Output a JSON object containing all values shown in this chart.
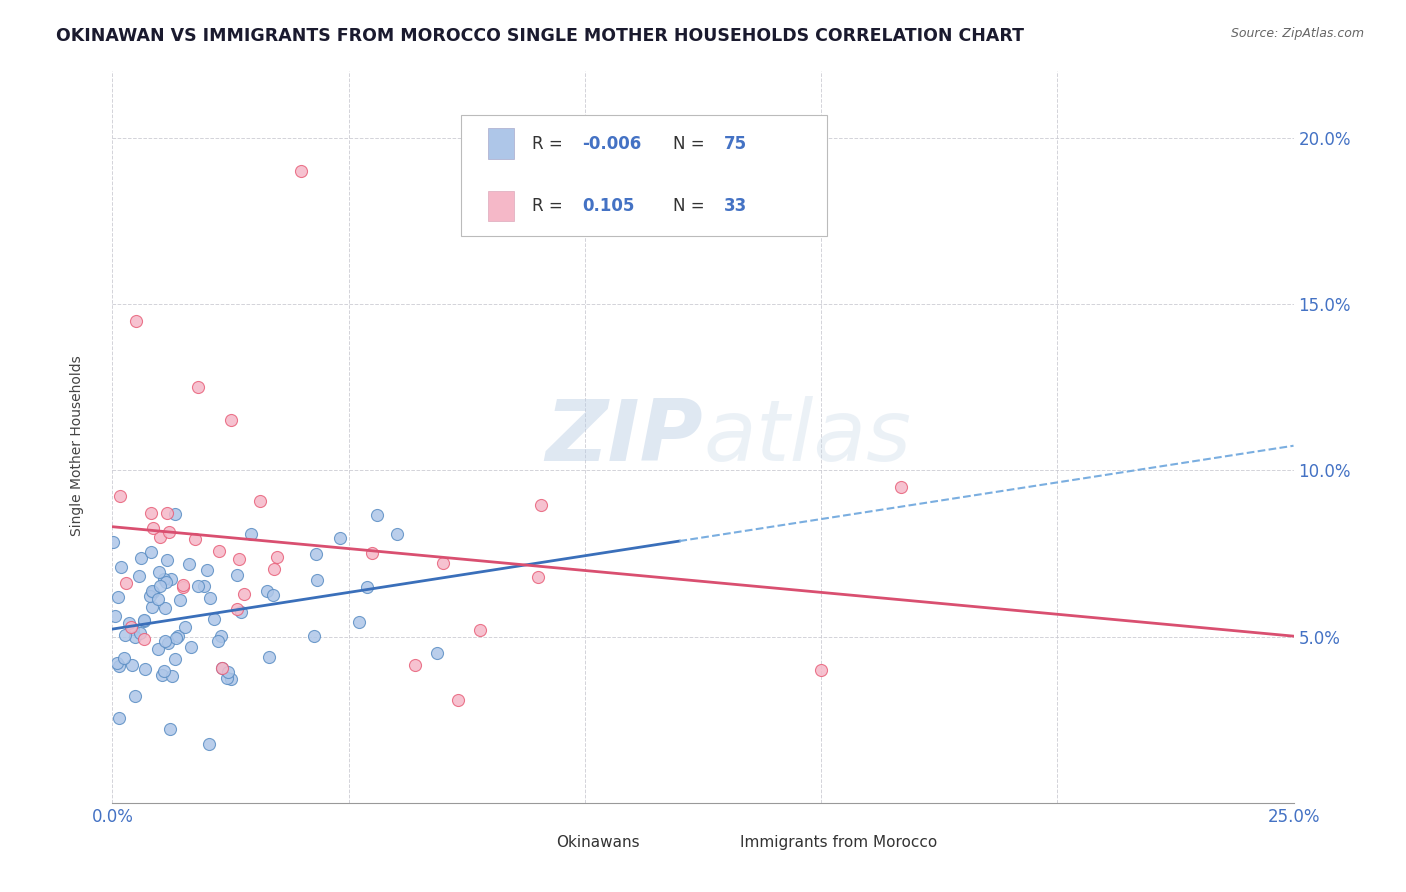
{
  "title": "OKINAWAN VS IMMIGRANTS FROM MOROCCO SINGLE MOTHER HOUSEHOLDS CORRELATION CHART",
  "source": "Source: ZipAtlas.com",
  "ylabel": "Single Mother Households",
  "xlim": [
    0.0,
    0.25
  ],
  "ylim": [
    0.0,
    0.22
  ],
  "ytick_vals": [
    0.05,
    0.1,
    0.15,
    0.2
  ],
  "ytick_labels": [
    "5.0%",
    "10.0%",
    "15.0%",
    "20.0%"
  ],
  "xtick_vals": [
    0.0,
    0.05,
    0.1,
    0.15,
    0.2,
    0.25
  ],
  "xtick_labels": [
    "0.0%",
    "",
    "",
    "",
    "",
    "25.0%"
  ],
  "legend_okinawan_R": "-0.006",
  "legend_okinawan_N": "75",
  "legend_morocco_R": "0.105",
  "legend_morocco_N": "33",
  "okinawan_color": "#aec6e8",
  "okinawan_edge_color": "#5b8ec4",
  "morocco_color": "#f5b8c8",
  "morocco_edge_color": "#e8607a",
  "ok_trend_solid_color": "#3a6fba",
  "ok_trend_dash_color": "#7aaee0",
  "mor_trend_color": "#d94f70",
  "background_color": "#ffffff",
  "grid_color": "#c8c8d0",
  "watermark_color": "#d0dff0",
  "title_color": "#1a1a2e",
  "axis_label_color": "#4472c4",
  "legend_R_color": "#4472c4",
  "legend_label_color": "#333333"
}
